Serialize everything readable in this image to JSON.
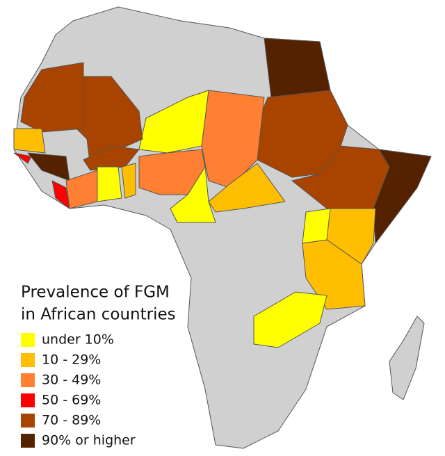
{
  "legend": {
    "title_lines": [
      "Prevalence of FGM",
      "in African countries"
    ],
    "items": [
      {
        "label": "under 10%",
        "color": "#ffff00"
      },
      {
        "label": "10 - 29%",
        "color": "#ffbf00"
      },
      {
        "label": "30 - 49%",
        "color": "#ff8033"
      },
      {
        "label": "50 - 69%",
        "color": "#ff0000"
      },
      {
        "label": "70 - 89%",
        "color": "#a84300"
      },
      {
        "label": "90% or higher",
        "color": "#552200"
      }
    ]
  }
}
